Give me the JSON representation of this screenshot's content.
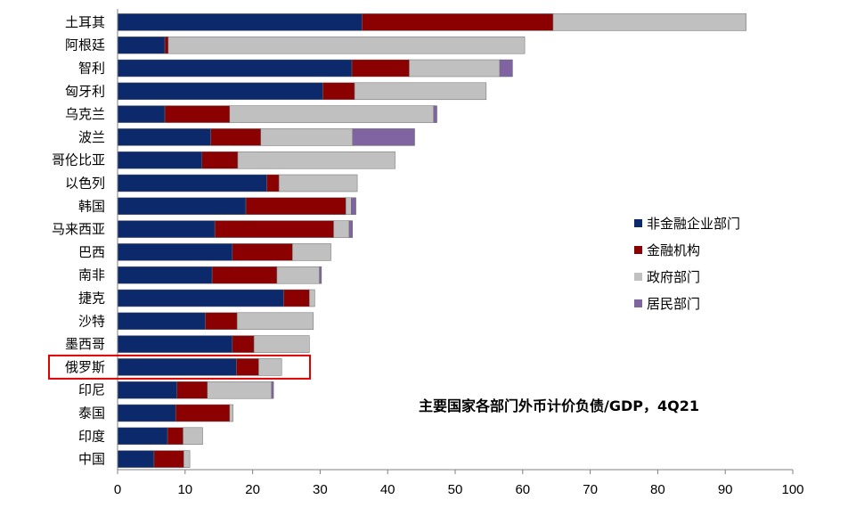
{
  "chart_data": {
    "type": "bar",
    "orientation": "horizontal",
    "stacked": true,
    "title": "主要国家各部门外币计价负债/GDP，4Q21",
    "xlim": [
      0,
      100
    ],
    "xticks": [
      "0",
      "10",
      "20",
      "30",
      "40",
      "50",
      "60",
      "70",
      "80",
      "90",
      "100"
    ],
    "categories": [
      "土耳其",
      "阿根廷",
      "智利",
      "匈牙利",
      "乌克兰",
      "波兰",
      "哥伦比亚",
      "以色列",
      "韩国",
      "马来西亚",
      "巴西",
      "南非",
      "捷克",
      "沙特",
      "墨西哥",
      "俄罗斯",
      "印尼",
      "泰国",
      "印度",
      "中国"
    ],
    "series": [
      {
        "name": "非金融企业部门",
        "color": "#0c2a6b",
        "values": [
          36.2,
          7.0,
          34.7,
          30.4,
          7.0,
          13.8,
          12.5,
          22.1,
          19.0,
          14.4,
          17.0,
          14.0,
          24.6,
          13.0,
          17.0,
          17.6,
          8.8,
          8.6,
          7.4,
          5.4
        ]
      },
      {
        "name": "金融机构",
        "color": "#8b0000",
        "values": [
          28.3,
          0.5,
          8.5,
          4.7,
          9.6,
          7.4,
          5.3,
          1.8,
          14.8,
          17.6,
          8.9,
          9.6,
          3.8,
          4.7,
          3.2,
          3.3,
          4.5,
          8.0,
          2.3,
          4.4
        ]
      },
      {
        "name": "政府部门",
        "color": "#c0c0c0",
        "values": [
          28.6,
          52.8,
          13.4,
          19.5,
          30.2,
          13.6,
          23.3,
          11.6,
          0.8,
          2.3,
          5.7,
          6.3,
          0.8,
          11.3,
          8.2,
          3.4,
          9.5,
          0.5,
          2.9,
          0.9
        ]
      },
      {
        "name": "居民部门",
        "color": "#8064a2",
        "values": [
          0,
          0,
          1.9,
          0,
          0.5,
          9.2,
          0,
          0,
          0.7,
          0.5,
          0,
          0.3,
          0,
          0,
          0,
          0,
          0.3,
          0,
          0,
          0
        ]
      }
    ],
    "highlighted_category": "俄罗斯",
    "highlight_color": "#e00000",
    "legend_position": "right-middle",
    "grid": false,
    "xlabel": "",
    "ylabel": ""
  }
}
